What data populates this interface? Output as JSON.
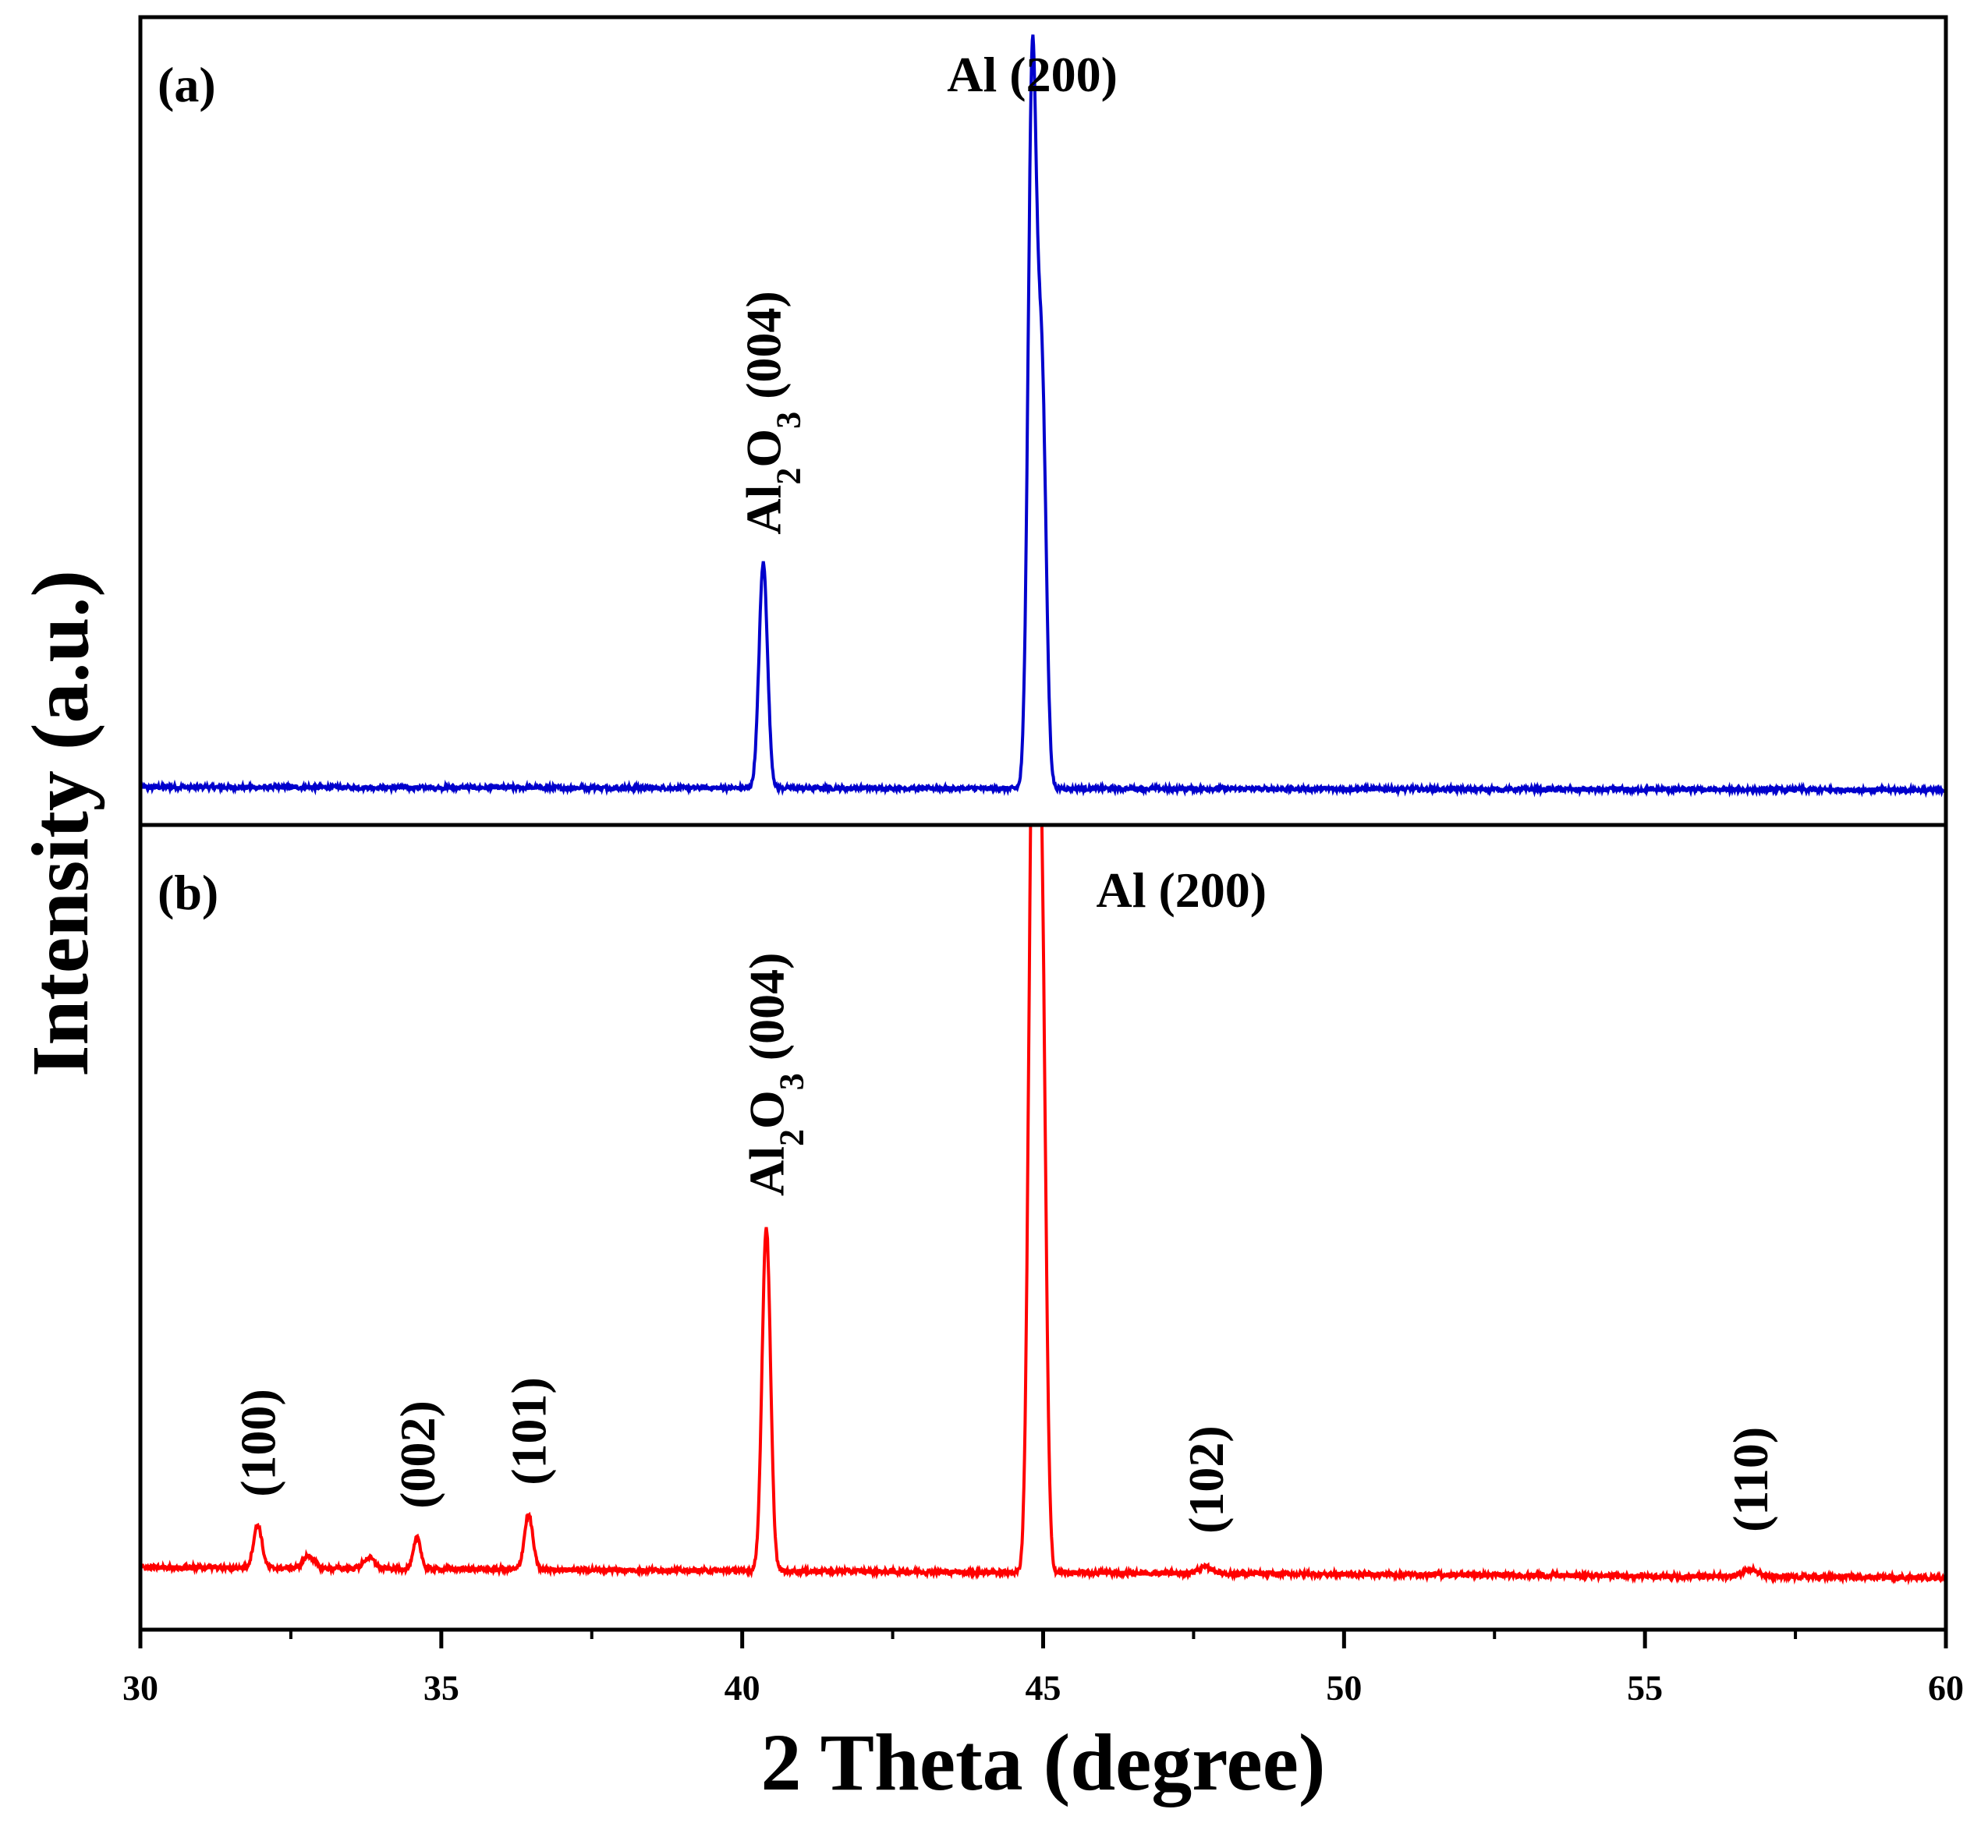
{
  "chart_data": {
    "type": "line",
    "xlabel": "2 Theta (degree)",
    "ylabel": "Intensity (a.u.)",
    "xlim": [
      30,
      60
    ],
    "xticks": [
      30,
      35,
      40,
      45,
      50,
      55,
      60
    ],
    "panels": [
      {
        "label": "(a)",
        "color": "#0000cc",
        "baseline": 0.02,
        "ylim": [
          0,
          1.08
        ],
        "peaks": [
          {
            "x": 40.35,
            "height": 0.31,
            "width": 0.07
          },
          {
            "x": 44.82,
            "height": 0.99,
            "width": 0.07
          },
          {
            "x": 44.98,
            "height": 0.55,
            "width": 0.07
          }
        ],
        "annotations": [
          {
            "text": "Al (200)",
            "x": 44.82,
            "rotate": false
          },
          {
            "text": "Al2O3 (004)",
            "x": 40.35,
            "rotate": true
          }
        ]
      },
      {
        "label": "(b)",
        "color": "#ff0000",
        "baseline": 0.05,
        "ylim": [
          0,
          1.0
        ],
        "peaks": [
          {
            "x": 31.95,
            "height": 0.055,
            "width": 0.07
          },
          {
            "x": 32.8,
            "height": 0.016,
            "width": 0.09
          },
          {
            "x": 33.8,
            "height": 0.014,
            "width": 0.09
          },
          {
            "x": 34.6,
            "height": 0.04,
            "width": 0.06
          },
          {
            "x": 36.45,
            "height": 0.07,
            "width": 0.07
          },
          {
            "x": 40.4,
            "height": 0.44,
            "width": 0.07
          },
          {
            "x": 44.83,
            "height": 1.08,
            "width": 0.07
          },
          {
            "x": 44.97,
            "height": 0.85,
            "width": 0.07
          },
          {
            "x": 47.7,
            "height": 0.008,
            "width": 0.12
          },
          {
            "x": 56.75,
            "height": 0.01,
            "width": 0.12
          }
        ],
        "annotations": [
          {
            "text": "Al (200)",
            "x": 44.9,
            "rotate": false
          },
          {
            "text": "Al2O3 (004)",
            "x": 40.4,
            "rotate": true
          },
          {
            "text": "(100)",
            "x": 31.95,
            "rotate": true
          },
          {
            "text": "(002)",
            "x": 34.6,
            "rotate": true
          },
          {
            "text": "(101)",
            "x": 36.45,
            "rotate": true
          },
          {
            "text": "(102)",
            "x": 47.7,
            "rotate": true
          },
          {
            "text": "(110)",
            "x": 56.75,
            "rotate": true
          }
        ]
      }
    ]
  }
}
